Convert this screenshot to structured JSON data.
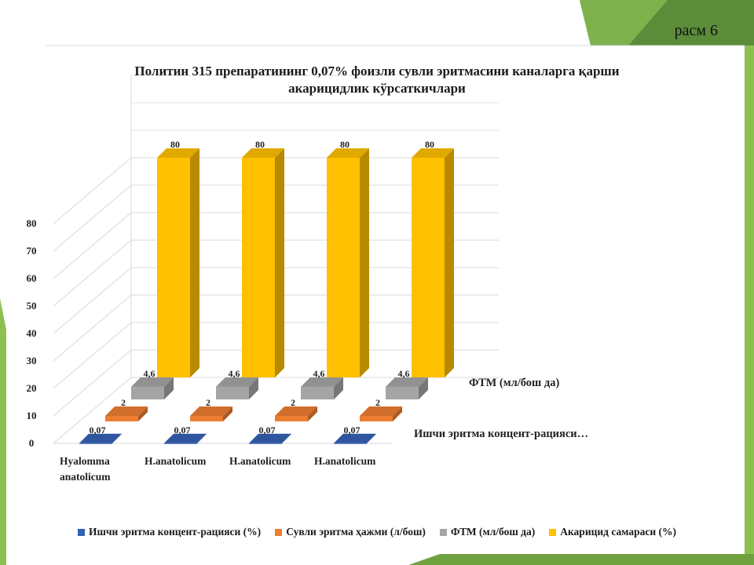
{
  "slide_label": "расм 6",
  "chart_data": {
    "type": "bar",
    "title_lines": [
      "Политин 315 препаратининг 0,07% фоизли сувли эритмасини каналарга қарши",
      "акарицидлик кўрсаткичлари"
    ],
    "categories": [
      [
        "Hyalomma",
        "anatolicum"
      ],
      [
        "H.anatolicum"
      ],
      [
        "H.anatolicum"
      ],
      [
        "H.anatolicum"
      ]
    ],
    "series": [
      {
        "name": "Ишчи эритма концент-рацияси (%)",
        "values": [
          0.07,
          0.07,
          0.07,
          0.07
        ],
        "labels": [
          "0,07",
          "0,07",
          "0,07",
          "0,07"
        ],
        "color": "#3561b5"
      },
      {
        "name": "Сувли эритма ҳажми (л/бош)",
        "values": [
          2,
          2,
          2,
          2
        ],
        "labels": [
          "2",
          "2",
          "2",
          "2"
        ],
        "color": "#ed7d31"
      },
      {
        "name": "ФТМ (мл/бош да)",
        "values": [
          4.6,
          4.6,
          4.6,
          4.6
        ],
        "labels": [
          "4,6",
          "4,6",
          "4,6",
          "4,6"
        ],
        "color": "#a5a5a5"
      },
      {
        "name": "Акарицид самараси (%)",
        "values": [
          80,
          80,
          80,
          80
        ],
        "labels": [
          "80",
          "80",
          "80",
          "80"
        ],
        "color": "#ffc000"
      }
    ],
    "depth_axis_labels": [
      "Ишчи эритма концент-рацияси…",
      "ФТМ (мл/бош да)"
    ],
    "y_ticks": [
      0,
      10,
      20,
      30,
      40,
      50,
      60,
      70,
      80
    ],
    "ylim": [
      0,
      80
    ],
    "grid": true,
    "legend_position": "bottom",
    "style": "3d-column"
  }
}
